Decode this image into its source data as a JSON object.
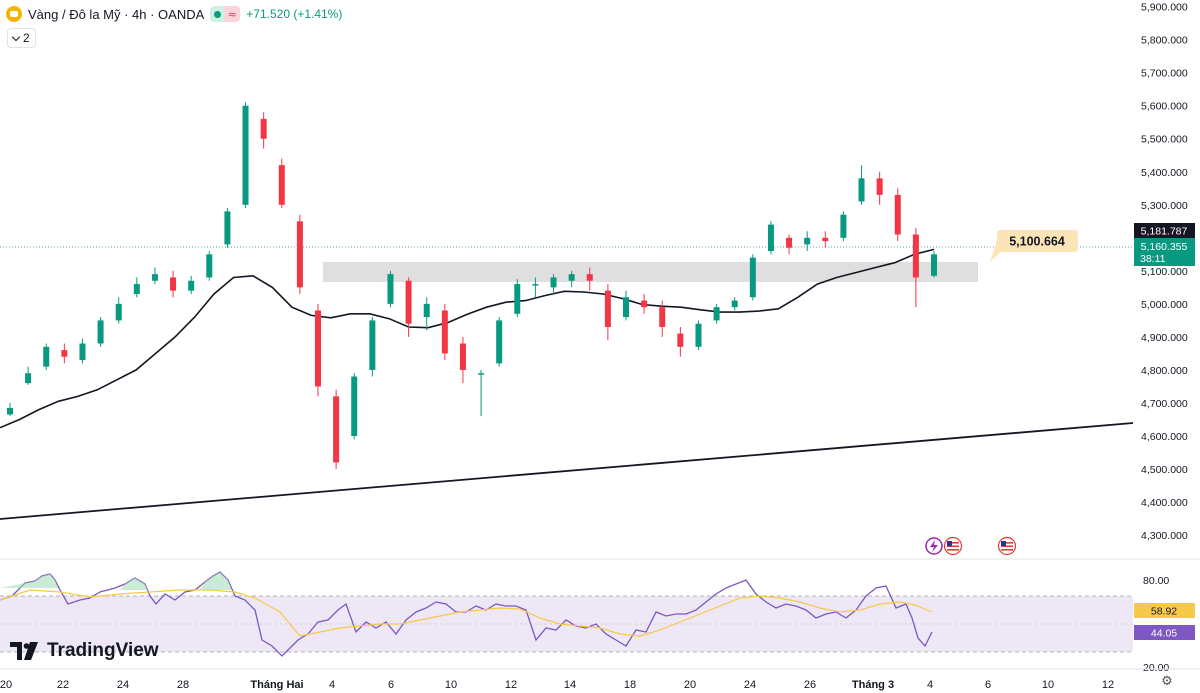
{
  "header": {
    "title": "Vàng / Đô la Mỹ · 4h · OANDA",
    "status_icon": "market-open-dot",
    "pill_b_symbol": "≈",
    "change": "+71.520 (+1.41%)",
    "collapse_count": "2"
  },
  "price_axis": {
    "ticks": [
      "5,900.000",
      "5,800.000",
      "5,700.000",
      "5,600.000",
      "5,500.000",
      "5,400.000",
      "5,300.000",
      "5,100.000",
      "5,000.000",
      "4,900.000",
      "4,800.000",
      "4,700.000",
      "4,600.000",
      "4,500.000",
      "4,400.000",
      "4,300.000"
    ],
    "high_label": "5,181.787",
    "last_price": "5,160.355",
    "countdown": "38:11"
  },
  "callout": {
    "text": "5,100.664"
  },
  "time_axis": {
    "labels": [
      "20",
      "22",
      "24",
      "28",
      "Tháng Hai",
      "4",
      "6",
      "10",
      "12",
      "14",
      "18",
      "20",
      "24",
      "26",
      "Tháng 3",
      "4",
      "6",
      "10",
      "12"
    ]
  },
  "rsi": {
    "ticks": [
      "80.00",
      "20.00"
    ],
    "ma_value": "58.92",
    "rsi_value": "44.05"
  },
  "events": [
    "lightning-event-icon",
    "us-flag-icon",
    "us-flag-icon"
  ],
  "branding": {
    "logo_text": "TradingView"
  },
  "colors": {
    "up": "#089981",
    "down": "#f23645",
    "rsi_line": "#7e57c2",
    "rsi_ma": "#f7c948",
    "rsi_band": "#ede7f6"
  },
  "chart_data": {
    "type": "candlestick",
    "ylim": [
      4270,
      5920
    ],
    "ma_values": [
      4625,
      4650,
      4680,
      4705,
      4720,
      4740,
      4770,
      4800,
      4850,
      4900,
      4960,
      5030,
      5080,
      5085,
      5050,
      4990,
      4965,
      4958,
      4970,
      4970,
      4955,
      4930,
      4928,
      4943,
      4968,
      4990,
      5005,
      5010,
      5025,
      5038,
      5036,
      5030,
      5016,
      4998,
      4993,
      4990,
      4982,
      4975,
      4975,
      4978,
      4985,
      5020,
      5060,
      5080,
      5095,
      5110,
      5125,
      5150,
      5165
    ],
    "candles": [
      [
        4665,
        4685,
        4660,
        4700
      ],
      [
        4760,
        4790,
        4755,
        4810
      ],
      [
        4810,
        4870,
        4800,
        4880
      ],
      [
        4860,
        4840,
        4820,
        4880
      ],
      [
        4830,
        4880,
        4820,
        4895
      ],
      [
        4880,
        4950,
        4870,
        4960
      ],
      [
        4950,
        5000,
        4940,
        5020
      ],
      [
        5030,
        5060,
        5020,
        5080
      ],
      [
        5070,
        5090,
        5060,
        5110
      ],
      [
        5080,
        5040,
        5020,
        5100
      ],
      [
        5040,
        5070,
        5030,
        5085
      ],
      [
        5080,
        5150,
        5070,
        5160
      ],
      [
        5180,
        5280,
        5170,
        5290
      ],
      [
        5300,
        5600,
        5290,
        5610
      ],
      [
        5560,
        5500,
        5470,
        5580
      ],
      [
        5420,
        5300,
        5290,
        5440
      ],
      [
        5250,
        5050,
        5030,
        5270
      ],
      [
        4980,
        4750,
        4720,
        5000
      ],
      [
        4720,
        4520,
        4500,
        4740
      ],
      [
        4600,
        4780,
        4590,
        4790
      ],
      [
        4800,
        4950,
        4780,
        4960
      ],
      [
        5000,
        5090,
        4990,
        5100
      ],
      [
        5070,
        4940,
        4900,
        5080
      ],
      [
        4960,
        5000,
        4920,
        5020
      ],
      [
        4980,
        4850,
        4830,
        5000
      ],
      [
        4880,
        4800,
        4760,
        4900
      ],
      [
        4790,
        4790,
        4660,
        4800
      ],
      [
        4820,
        4950,
        4810,
        4960
      ],
      [
        4970,
        5060,
        4960,
        5075
      ],
      [
        5060,
        5060,
        5020,
        5080
      ],
      [
        5050,
        5080,
        5030,
        5090
      ],
      [
        5070,
        5090,
        5050,
        5100
      ],
      [
        5090,
        5070,
        5040,
        5110
      ],
      [
        5040,
        4930,
        4890,
        5060
      ],
      [
        4960,
        5020,
        4950,
        5040
      ],
      [
        5010,
        4990,
        4970,
        5030
      ],
      [
        4990,
        4930,
        4900,
        5010
      ],
      [
        4910,
        4870,
        4840,
        4930
      ],
      [
        4870,
        4940,
        4860,
        4950
      ],
      [
        4950,
        4990,
        4940,
        5000
      ],
      [
        4990,
        5010,
        4980,
        5020
      ],
      [
        5020,
        5140,
        5010,
        5150
      ],
      [
        5160,
        5240,
        5150,
        5250
      ],
      [
        5200,
        5170,
        5150,
        5210
      ],
      [
        5180,
        5200,
        5160,
        5220
      ],
      [
        5200,
        5190,
        5170,
        5220
      ],
      [
        5200,
        5270,
        5190,
        5280
      ],
      [
        5310,
        5380,
        5300,
        5420
      ],
      [
        5380,
        5330,
        5300,
        5400
      ],
      [
        5330,
        5210,
        5190,
        5350
      ],
      [
        5210,
        5080,
        4990,
        5230
      ],
      [
        5085,
        5150,
        5080,
        5160
      ]
    ]
  }
}
